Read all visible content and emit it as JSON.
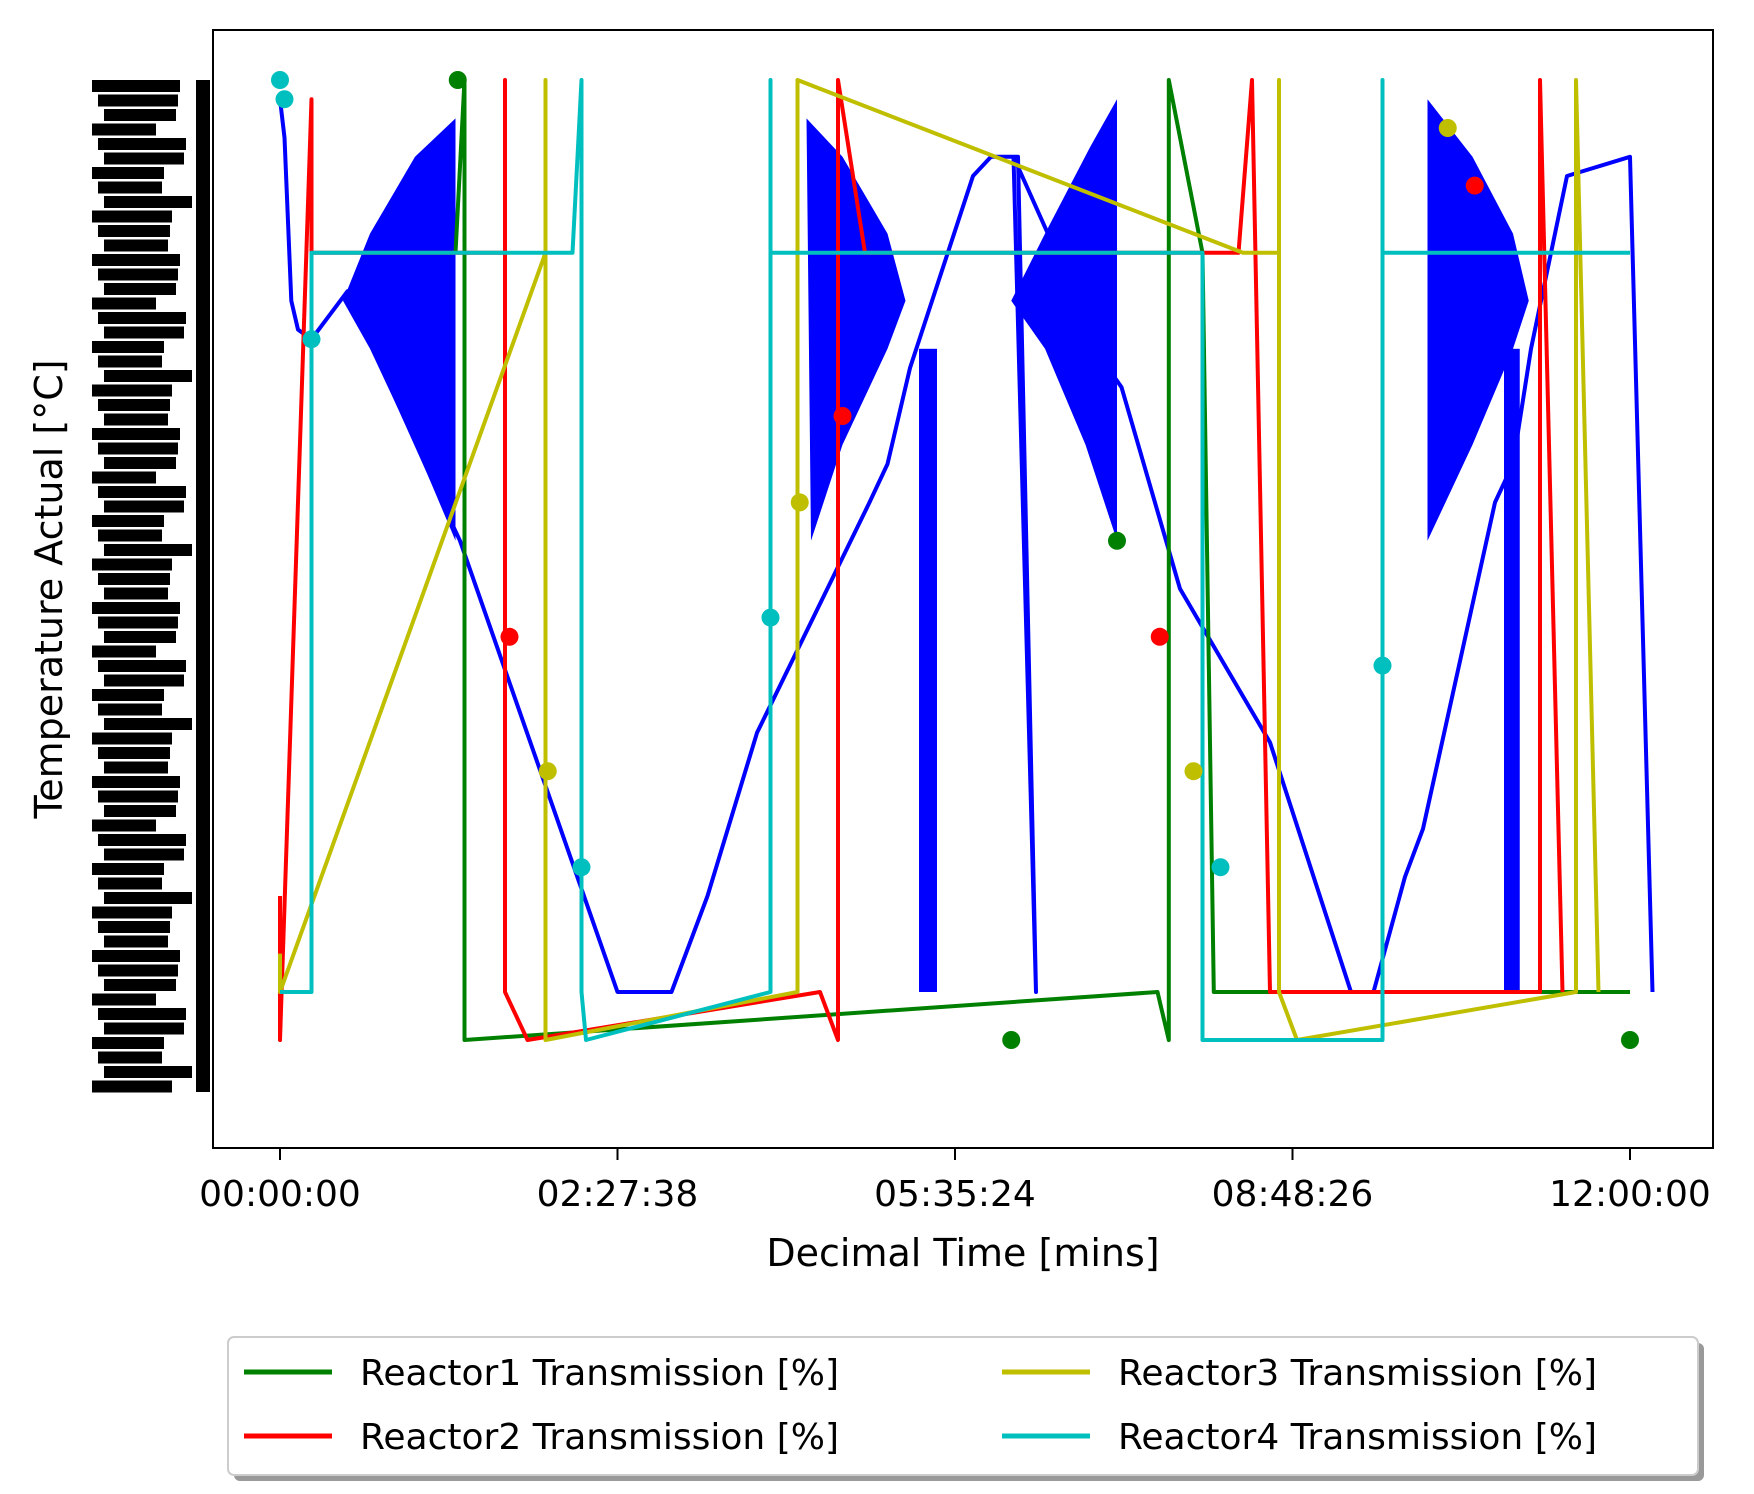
{
  "chart_data": {
    "type": "line",
    "xlabel": "Decimal Time [mins]",
    "ylabel": "Temperature Actual [°C]",
    "x_tick_labels": [
      "00:00:00",
      "02:27:38",
      "05:35:24",
      "08:48:26",
      "12:00:00"
    ],
    "x_tick_values_min": [
      0,
      150,
      300,
      450,
      600
    ],
    "xlim": [
      -30,
      630
    ],
    "ylim": [
      0,
      1
    ],
    "y_tick_labels": "illegible (heavily overprinted)",
    "series": [
      {
        "key": "temp",
        "color": "#0000ff",
        "values": [
          [
            0,
            0.98
          ],
          [
            2,
            0.94
          ],
          [
            5,
            0.77
          ],
          [
            8,
            0.74
          ],
          [
            14,
            0.73
          ],
          [
            30,
            0.78
          ],
          [
            74,
            0.55
          ],
          [
            80,
            0.52
          ],
          [
            150,
            0.05
          ],
          [
            174,
            0.05
          ],
          [
            190,
            0.15
          ],
          [
            212,
            0.32
          ],
          [
            262,
            0.56
          ],
          [
            270,
            0.6
          ],
          [
            280,
            0.7
          ],
          [
            308,
            0.9
          ],
          [
            316,
            0.92
          ],
          [
            328,
            0.92
          ],
          [
            336,
            0.05
          ],
          [
            326,
            0.92
          ],
          [
            368,
            0.7
          ],
          [
            374,
            0.68
          ],
          [
            400,
            0.47
          ],
          [
            440,
            0.31
          ],
          [
            476,
            0.05
          ],
          [
            486,
            0.05
          ],
          [
            500,
            0.17
          ],
          [
            508,
            0.22
          ],
          [
            540,
            0.56
          ],
          [
            548,
            0.6
          ],
          [
            556,
            0.72
          ],
          [
            572,
            0.9
          ],
          [
            600,
            0.92
          ],
          [
            610,
            0.05
          ]
        ]
      },
      {
        "key": "r1",
        "name": "Reactor1 Transmission [%]",
        "color": "#008000",
        "values": [
          [
            78,
            0.82
          ],
          [
            82,
            1.0
          ],
          [
            82,
            0.05
          ],
          [
            82,
            0.0
          ],
          [
            390,
            0.05
          ],
          [
            395,
            0.0
          ],
          [
            395,
            1.0
          ],
          [
            410,
            0.82
          ],
          [
            415,
            0.05
          ],
          [
            600,
            0.05
          ]
        ]
      },
      {
        "key": "r2",
        "name": "Reactor2 Transmission [%]",
        "color": "#ff0000",
        "values": [
          [
            0,
            0.15
          ],
          [
            0,
            0.0
          ],
          [
            14,
            0.98
          ],
          [
            14,
            0.82
          ],
          [
            100,
            0.82
          ],
          [
            100,
            1.0
          ],
          [
            100,
            0.05
          ],
          [
            110,
            0.0
          ],
          [
            240,
            0.05
          ],
          [
            248,
            0.0
          ],
          [
            248,
            1.0
          ],
          [
            260,
            0.82
          ],
          [
            426,
            0.82
          ],
          [
            432,
            1.0
          ],
          [
            440,
            0.05
          ],
          [
            560,
            0.05
          ],
          [
            560,
            1.0
          ],
          [
            570,
            0.05
          ]
        ]
      },
      {
        "key": "r3",
        "name": "Reactor3 Transmission [%]",
        "color": "#bfbf00",
        "values": [
          [
            0,
            0.09
          ],
          [
            0,
            0.05
          ],
          [
            118,
            0.82
          ],
          [
            118,
            1.0
          ],
          [
            118,
            0.05
          ],
          [
            118,
            0.0
          ],
          [
            230,
            0.05
          ],
          [
            230,
            1.0
          ],
          [
            428,
            0.82
          ],
          [
            444,
            0.82
          ],
          [
            444,
            1.0
          ],
          [
            444,
            0.05
          ],
          [
            452,
            0.0
          ],
          [
            576,
            0.05
          ],
          [
            576,
            1.0
          ],
          [
            586,
            0.05
          ]
        ]
      },
      {
        "key": "r4",
        "name": "Reactor4 Transmission [%]",
        "color": "#00bfbf",
        "values": [
          [
            0,
            0.05
          ],
          [
            14,
            0.05
          ],
          [
            14,
            0.82
          ],
          [
            130,
            0.82
          ],
          [
            134,
            1.0
          ],
          [
            134,
            0.05
          ],
          [
            136,
            0.0
          ],
          [
            218,
            0.05
          ],
          [
            218,
            1.0
          ],
          [
            218,
            0.82
          ],
          [
            410,
            0.82
          ],
          [
            410,
            0.05
          ],
          [
            410,
            0.0
          ],
          [
            490,
            0.0
          ],
          [
            490,
            1.0
          ],
          [
            490,
            0.82
          ],
          [
            600,
            0.82
          ]
        ]
      }
    ],
    "markers": [
      {
        "x": 0,
        "y": 1.0,
        "color": "#00bfbf"
      },
      {
        "x": 2,
        "y": 0.98,
        "color": "#00bfbf"
      },
      {
        "x": 14,
        "y": 0.73,
        "color": "#00bfbf"
      },
      {
        "x": 79,
        "y": 1.0,
        "color": "#008000"
      },
      {
        "x": 102,
        "y": 0.42,
        "color": "#ff0000"
      },
      {
        "x": 119,
        "y": 0.28,
        "color": "#bfbf00"
      },
      {
        "x": 134,
        "y": 0.18,
        "color": "#00bfbf"
      },
      {
        "x": 218,
        "y": 0.44,
        "color": "#00bfbf"
      },
      {
        "x": 231,
        "y": 0.56,
        "color": "#bfbf00"
      },
      {
        "x": 250,
        "y": 0.65,
        "color": "#ff0000"
      },
      {
        "x": 325,
        "y": 0.0,
        "color": "#008000"
      },
      {
        "x": 372,
        "y": 0.52,
        "color": "#008000"
      },
      {
        "x": 391,
        "y": 0.42,
        "color": "#ff0000"
      },
      {
        "x": 406,
        "y": 0.28,
        "color": "#bfbf00"
      },
      {
        "x": 418,
        "y": 0.18,
        "color": "#00bfbf"
      },
      {
        "x": 490,
        "y": 0.39,
        "color": "#00bfbf"
      },
      {
        "x": 519,
        "y": 0.95,
        "color": "#bfbf00"
      },
      {
        "x": 531,
        "y": 0.89,
        "color": "#ff0000"
      },
      {
        "x": 600,
        "y": 0.0,
        "color": "#008000"
      }
    ],
    "legend": {
      "placement": "below-plot",
      "columns": 2,
      "entries": [
        "Reactor1 Transmission [%]",
        "Reactor2 Transmission [%]",
        "Reactor3 Transmission [%]",
        "Reactor4 Transmission [%]"
      ]
    },
    "grid": false
  }
}
